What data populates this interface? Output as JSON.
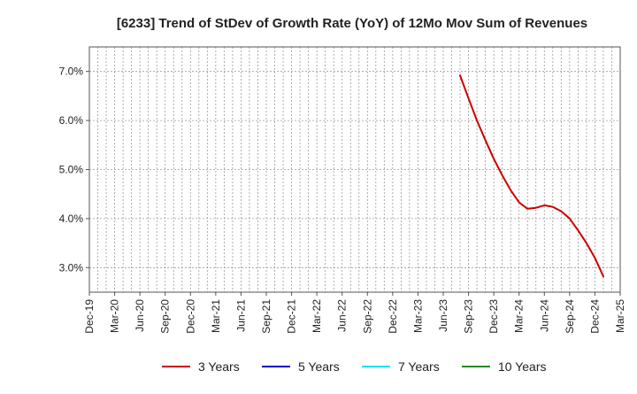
{
  "chart_data": {
    "type": "line",
    "title": "[6233]  Trend of StDev of Growth Rate (YoY) of 12Mo Mov Sum of Revenues",
    "xlabel": "",
    "ylabel": "",
    "ylim": [
      2.5,
      7.5
    ],
    "yticks": [
      3.0,
      4.0,
      5.0,
      6.0,
      7.0
    ],
    "ytick_labels": [
      "3.0%",
      "4.0%",
      "5.0%",
      "6.0%",
      "7.0%"
    ],
    "x_start": "2019-12",
    "x_end": "2025-03",
    "x_tick_labels": [
      "Dec-19",
      "Mar-20",
      "Jun-20",
      "Sep-20",
      "Dec-20",
      "Mar-21",
      "Jun-21",
      "Sep-21",
      "Dec-21",
      "Mar-22",
      "Jun-22",
      "Sep-22",
      "Dec-22",
      "Mar-23",
      "Jun-23",
      "Sep-23",
      "Dec-23",
      "Mar-24",
      "Jun-24",
      "Sep-24",
      "Dec-24",
      "Mar-25"
    ],
    "grid": true,
    "legend_position": "bottom",
    "series": [
      {
        "name": "3 Years",
        "color": "#cc0000",
        "points": [
          [
            "2023-08",
            6.92
          ],
          [
            "2023-09",
            6.45
          ],
          [
            "2023-10",
            6.0
          ],
          [
            "2023-11",
            5.6
          ],
          [
            "2023-12",
            5.22
          ],
          [
            "2024-01",
            4.88
          ],
          [
            "2024-02",
            4.58
          ],
          [
            "2024-03",
            4.33
          ],
          [
            "2024-04",
            4.2
          ],
          [
            "2024-05",
            4.22
          ],
          [
            "2024-06",
            4.27
          ],
          [
            "2024-07",
            4.24
          ],
          [
            "2024-08",
            4.15
          ],
          [
            "2024-09",
            4.0
          ],
          [
            "2024-10",
            3.76
          ],
          [
            "2024-11",
            3.5
          ],
          [
            "2024-12",
            3.2
          ],
          [
            "2025-01",
            2.82
          ]
        ]
      },
      {
        "name": "5 Years",
        "color": "#0000cc",
        "points": []
      },
      {
        "name": "7 Years",
        "color": "#00e5ee",
        "points": []
      },
      {
        "name": "10 Years",
        "color": "#228b22",
        "points": []
      }
    ]
  }
}
